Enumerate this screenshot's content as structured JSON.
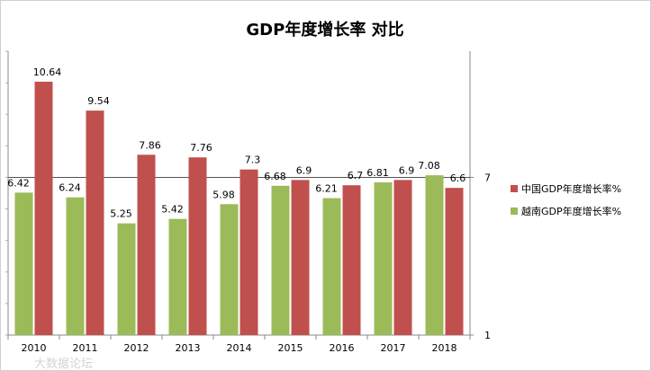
{
  "chart_data": {
    "type": "bar",
    "title": "GDP年度增长率 对比",
    "categories": [
      "2010",
      "2011",
      "2012",
      "2013",
      "2014",
      "2015",
      "2016",
      "2017",
      "2018"
    ],
    "series": [
      {
        "name": "越南GDP年度增长率%",
        "values": [
          6.42,
          6.24,
          5.25,
          5.42,
          5.98,
          6.68,
          6.21,
          6.81,
          7.08
        ],
        "color": "#9BBB59"
      },
      {
        "name": "中国GDP年度增长率%",
        "values": [
          10.64,
          9.54,
          7.86,
          7.76,
          7.3,
          6.9,
          6.7,
          6.9,
          6.6
        ],
        "color": "#C0504D"
      }
    ],
    "legend_order": [
      "中国GDP年度增长率%",
      "越南GDP年度增长率%"
    ],
    "ylim": [
      1,
      11.8
    ],
    "y_tick_labels": [
      {
        "value": 7,
        "label": "7"
      },
      {
        "value": 1,
        "label": "1"
      }
    ],
    "reference_line": 7,
    "legend_position": "right",
    "grid": false,
    "watermark": "大数据论坛"
  }
}
